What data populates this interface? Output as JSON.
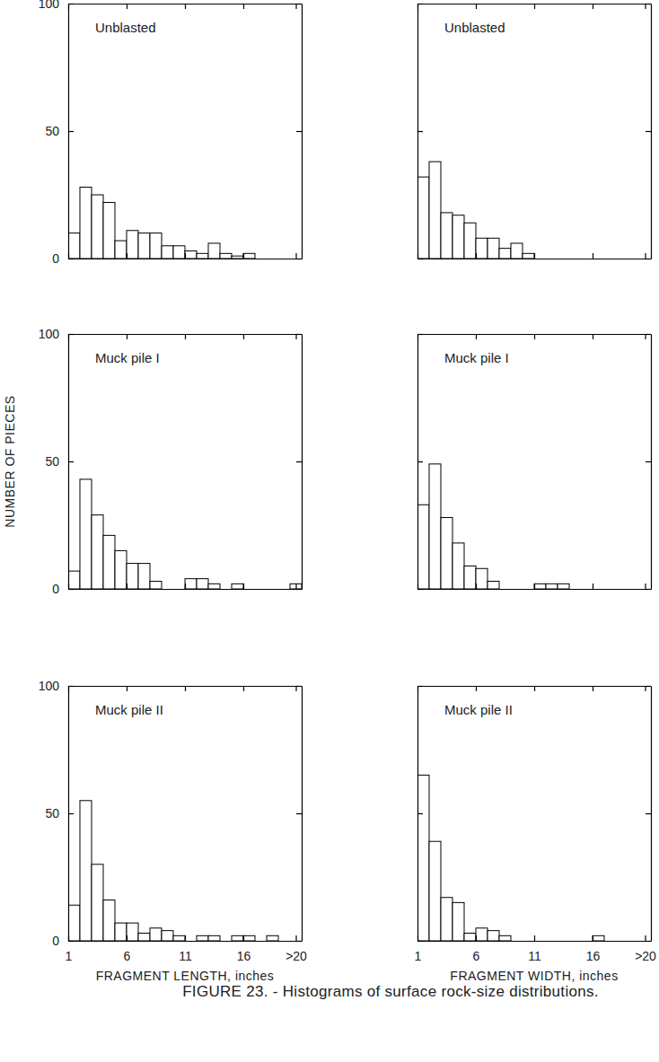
{
  "chart_data": [
    {
      "type": "histogram",
      "title": "Unblasted",
      "bins": [
        1,
        2,
        3,
        4,
        5,
        6,
        7,
        8,
        9,
        10,
        11,
        12,
        13,
        14,
        15,
        16,
        17,
        18,
        19,
        20,
        21
      ],
      "values": [
        10,
        28,
        25,
        22,
        7,
        11,
        10,
        10,
        5,
        5,
        3,
        2,
        6,
        2,
        1,
        2,
        0,
        0,
        0,
        0
      ],
      "xlim": [
        1,
        21
      ],
      "ylim": [
        0,
        100
      ],
      "xticks": [
        1,
        6,
        11,
        16,
        {
          "value": 20.5,
          "label": ">20"
        }
      ],
      "yticks": [
        0,
        50,
        100
      ],
      "tick_labels": "y"
    },
    {
      "type": "histogram",
      "title": "Unblasted",
      "bins": [
        1,
        2,
        3,
        4,
        5,
        6,
        7,
        8,
        9,
        10,
        11,
        12,
        13,
        14,
        15,
        16,
        17,
        18,
        19,
        20,
        21
      ],
      "values": [
        32,
        38,
        18,
        17,
        14,
        8,
        8,
        4,
        6,
        2,
        0,
        0,
        0,
        0,
        0,
        0,
        0,
        0,
        0,
        0
      ],
      "xlim": [
        1,
        21
      ],
      "ylim": [
        0,
        100
      ],
      "xticks": [
        1,
        6,
        11,
        16,
        {
          "value": 20.5,
          "label": ">20"
        }
      ],
      "yticks": [
        0,
        50,
        100
      ],
      "tick_labels": false
    },
    {
      "type": "histogram",
      "title": "Muck pile I",
      "ylabel": "NUMBER OF PIECES",
      "bins": [
        1,
        2,
        3,
        4,
        5,
        6,
        7,
        8,
        9,
        10,
        11,
        12,
        13,
        14,
        15,
        16,
        17,
        18,
        19,
        20,
        21
      ],
      "values": [
        7,
        43,
        29,
        21,
        15,
        10,
        10,
        3,
        0,
        0,
        4,
        4,
        2,
        0,
        2,
        0,
        0,
        0,
        0,
        2
      ],
      "xlim": [
        1,
        21
      ],
      "ylim": [
        0,
        100
      ],
      "xticks": [
        1,
        6,
        11,
        16,
        {
          "value": 20.5,
          "label": ">20"
        }
      ],
      "yticks": [
        0,
        50,
        100
      ],
      "tick_labels": "y"
    },
    {
      "type": "histogram",
      "title": "Muck pile I",
      "bins": [
        1,
        2,
        3,
        4,
        5,
        6,
        7,
        8,
        9,
        10,
        11,
        12,
        13,
        14,
        15,
        16,
        17,
        18,
        19,
        20,
        21
      ],
      "values": [
        33,
        49,
        28,
        18,
        9,
        8,
        3,
        0,
        0,
        0,
        2,
        2,
        2,
        0,
        0,
        0,
        0,
        0,
        0,
        0
      ],
      "xlim": [
        1,
        21
      ],
      "ylim": [
        0,
        100
      ],
      "xticks": [
        1,
        6,
        11,
        16,
        {
          "value": 20.5,
          "label": ">20"
        }
      ],
      "yticks": [
        0,
        50,
        100
      ],
      "tick_labels": false
    },
    {
      "type": "histogram",
      "title": "Muck pile II",
      "xlabel": "FRAGMENT LENGTH, inches",
      "bins": [
        1,
        2,
        3,
        4,
        5,
        6,
        7,
        8,
        9,
        10,
        11,
        12,
        13,
        14,
        15,
        16,
        17,
        18,
        19,
        20,
        21
      ],
      "values": [
        14,
        55,
        30,
        16,
        7,
        7,
        3,
        5,
        4,
        2,
        0,
        2,
        2,
        0,
        2,
        2,
        0,
        2,
        0,
        0
      ],
      "xlim": [
        1,
        21
      ],
      "ylim": [
        0,
        100
      ],
      "xticks": [
        1,
        6,
        11,
        16,
        {
          "value": 20.5,
          "label": ">20"
        }
      ],
      "yticks": [
        0,
        50,
        100
      ],
      "tick_labels": true
    },
    {
      "type": "histogram",
      "title": "Muck pile II",
      "xlabel": "FRAGMENT WIDTH, inches",
      "bins": [
        1,
        2,
        3,
        4,
        5,
        6,
        7,
        8,
        9,
        10,
        11,
        12,
        13,
        14,
        15,
        16,
        17,
        18,
        19,
        20,
        21
      ],
      "values": [
        65,
        39,
        17,
        15,
        3,
        5,
        4,
        2,
        0,
        0,
        0,
        0,
        0,
        0,
        0,
        2,
        0,
        0,
        0,
        0
      ],
      "xlim": [
        1,
        21
      ],
      "ylim": [
        0,
        100
      ],
      "xticks": [
        1,
        6,
        11,
        16,
        {
          "value": 20.5,
          "label": ">20"
        }
      ],
      "yticks": [
        0,
        50,
        100
      ],
      "tick_labels": "x"
    }
  ],
  "caption": "FIGURE 23. - Histograms of surface rock-size distributions."
}
